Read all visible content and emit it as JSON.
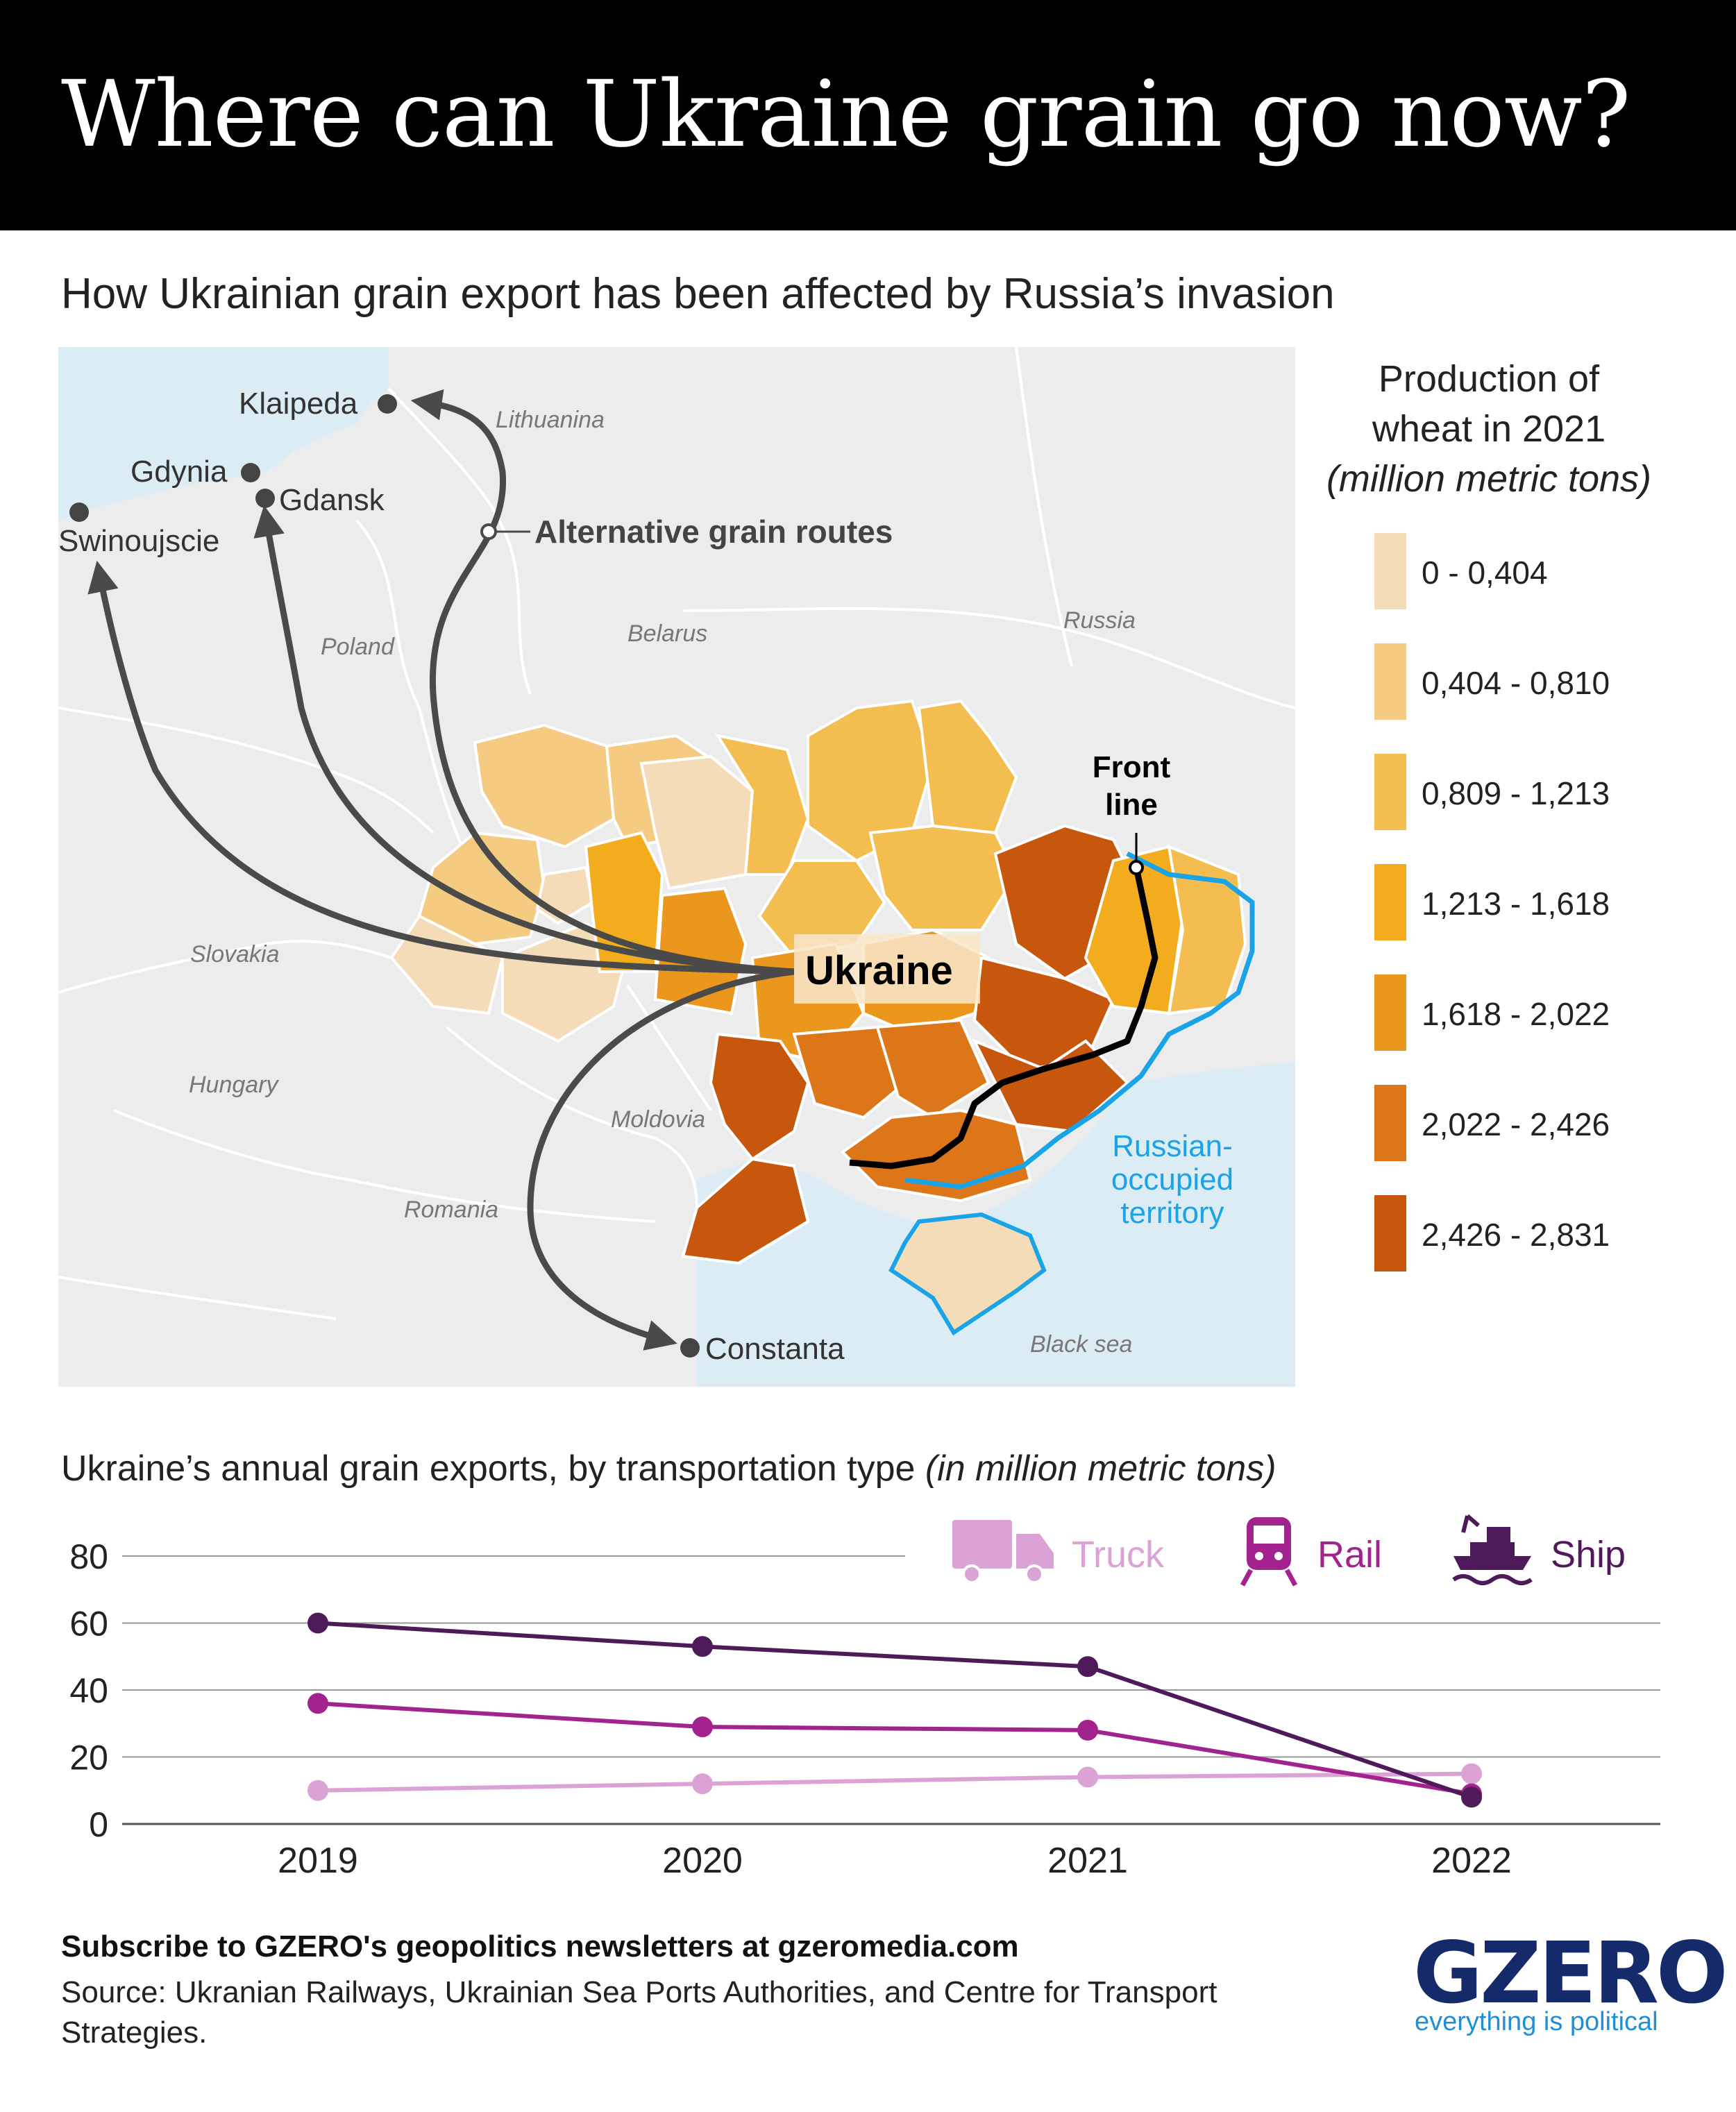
{
  "header": {
    "title": "Where can Ukraine grain go now?",
    "subtitle": "How Ukrainian grain export has been affected by Russia’s invasion"
  },
  "map": {
    "country_labels": [
      "Lithuanina",
      "Belarus",
      "Russia",
      "Poland",
      "Slovakia",
      "Hungary",
      "Moldovia",
      "Romania",
      "Black sea"
    ],
    "ports": [
      "Klaipeda",
      "Gdynia",
      "Gdansk",
      "Swinoujscie",
      "Constanta"
    ],
    "focus_label": "Ukraine",
    "routes_label": "Alternative grain routes",
    "front_line_label": [
      "Front",
      "line"
    ],
    "occupied_label": [
      "Russian-",
      "occupied",
      "territory"
    ],
    "colors": {
      "sea": "#dcecf5",
      "land": "#ececec",
      "route": "#4a4a4a",
      "front_line": "#000000",
      "occupied_outline": "#1aa3e6"
    }
  },
  "legend": {
    "title_lines": [
      "Production of",
      "wheat in 2021"
    ],
    "unit": "(million metric tons)",
    "items": [
      {
        "label": "0 - 0,404",
        "color": "#f4dcb8"
      },
      {
        "label": "0,404 - 0,810",
        "color": "#f4cb80"
      },
      {
        "label": "0,809 - 1,213",
        "color": "#f3bd50"
      },
      {
        "label": "1,213 - 1,618",
        "color": "#f2ac1e"
      },
      {
        "label": "1,618 - 2,022",
        "color": "#eb961c"
      },
      {
        "label": "2,022 - 2,426",
        "color": "#dc7618"
      },
      {
        "label": "2,426 - 2,831",
        "color": "#c8570e"
      }
    ]
  },
  "chart_title": {
    "text": "Ukraine’s annual grain exports, by transportation type",
    "unit": "(in million metric tons)"
  },
  "chart_data": {
    "type": "line",
    "x": [
      "2019",
      "2020",
      "2021",
      "2022"
    ],
    "yticks": [
      0,
      20,
      40,
      60,
      80
    ],
    "ylim": [
      0,
      80
    ],
    "legend_placement": "top-right",
    "grid": true,
    "series": [
      {
        "name": "Truck",
        "values": [
          10,
          12,
          14,
          15
        ],
        "color": "#dba3d5",
        "icon": "truck-icon"
      },
      {
        "name": "Rail",
        "values": [
          36,
          29,
          28,
          9
        ],
        "color": "#a3238e",
        "icon": "train-icon"
      },
      {
        "name": "Ship",
        "values": [
          60,
          53,
          47,
          8
        ],
        "color": "#4e1a5a",
        "icon": "ship-icon"
      }
    ]
  },
  "footer": {
    "subscribe": "Subscribe to GZERO's geopolitics newsletters at gzeromedia.com",
    "source": "Source: Ukranian Railways, Ukrainian Sea Ports Authorities, and Centre for Transport Strategies."
  },
  "logo": {
    "word": "GZERO",
    "tagline": "everything is political"
  }
}
